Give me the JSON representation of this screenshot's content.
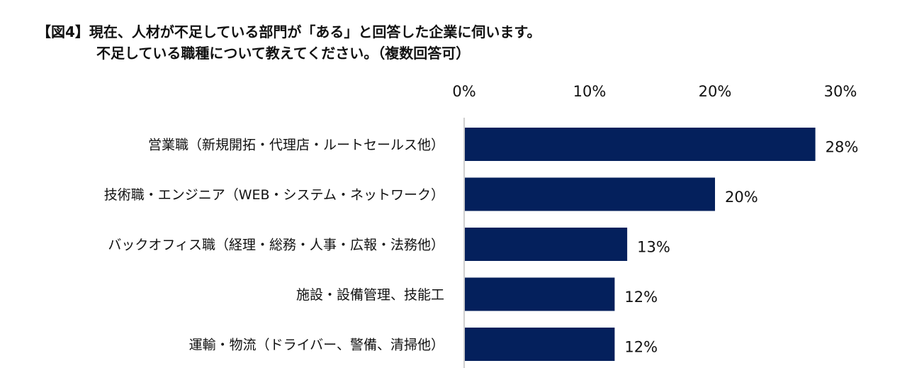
{
  "title": {
    "line1": "【図4】現在、人材が不足している部門が「ある」と回答した企業に伺います。",
    "line2": "不足している職種について教えてください。（複数回答可）"
  },
  "colors": {
    "bar": "#04205c",
    "axis": "#bfbfbf",
    "text": "#111111"
  },
  "chart_data": {
    "type": "bar",
    "orientation": "horizontal",
    "title": "【図4】現在、人材が不足している部門が「ある」と回答した企業に伺います。不足している職種について教えてください。（複数回答可）",
    "categories": [
      "営業職（新規開拓・代理店・ルートセールス他）",
      "技術職・エンジニア（WEB・システム・ネットワーク）",
      "バックオフィス職（経理・総務・人事・広報・法務他）",
      "施設・設備管理、技能工",
      "運輸・物流（ドライバー、警備、清掃他）"
    ],
    "values": [
      28,
      20,
      13,
      12,
      12
    ],
    "data_labels": [
      "28%",
      "20%",
      "13%",
      "12%",
      "12%"
    ],
    "xlim": [
      0,
      30
    ],
    "x_ticks": [
      "0%",
      "10%",
      "20%",
      "30%"
    ],
    "grid": false,
    "legend": "none"
  }
}
